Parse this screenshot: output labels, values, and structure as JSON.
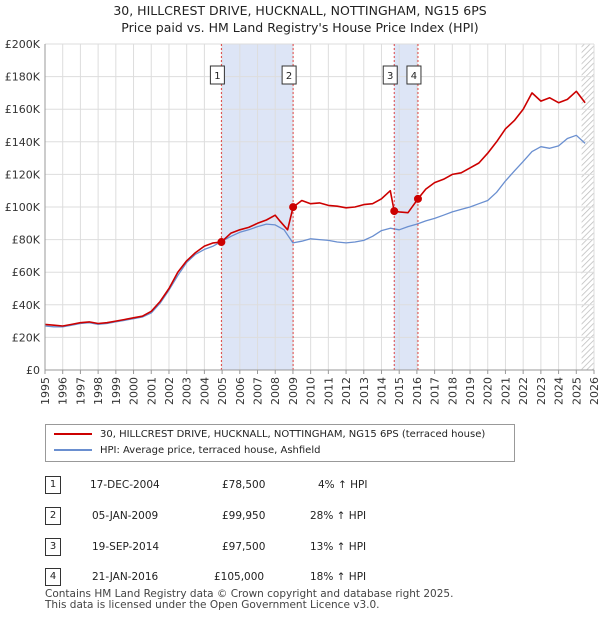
{
  "chart_data": {
    "type": "line",
    "title": "30, HILLCREST DRIVE, HUCKNALL, NOTTINGHAM, NG15 6PS",
    "subtitle": "Price paid vs. HM Land Registry's House Price Index (HPI)",
    "xlabel": "",
    "ylabel": "",
    "xlim": [
      1995,
      2026
    ],
    "ylim": [
      0,
      200000
    ],
    "x_ticks": [
      1995,
      1996,
      1997,
      1998,
      1999,
      2000,
      2001,
      2002,
      2003,
      2004,
      2005,
      2006,
      2007,
      2008,
      2009,
      2010,
      2011,
      2012,
      2013,
      2014,
      2015,
      2016,
      2017,
      2018,
      2019,
      2020,
      2021,
      2022,
      2023,
      2024,
      2025,
      2026
    ],
    "y_ticks": [
      0,
      20000,
      40000,
      60000,
      80000,
      100000,
      120000,
      140000,
      160000,
      180000,
      200000
    ],
    "y_tick_labels": [
      "£0",
      "£20K",
      "£40K",
      "£60K",
      "£80K",
      "£100K",
      "£120K",
      "£140K",
      "£160K",
      "£180K",
      "£200K"
    ],
    "grid": true,
    "shaded_spans": [
      [
        2004.96,
        2009.01
      ],
      [
        2014.72,
        2016.06
      ]
    ],
    "hatched_from": 2025.3,
    "series": [
      {
        "name": "30, HILLCREST DRIVE, HUCKNALL, NOTTINGHAM, NG15 6PS (terraced house)",
        "color": "#cc0000",
        "x": [
          1995,
          1995.5,
          1996,
          1996.5,
          1997,
          1997.5,
          1998,
          1998.5,
          1999,
          1999.5,
          2000,
          2000.5,
          2001,
          2001.5,
          2002,
          2002.5,
          2003,
          2003.5,
          2004,
          2004.5,
          2004.96,
          2005.5,
          2006,
          2006.5,
          2007,
          2007.5,
          2008,
          2008.3,
          2008.7,
          2009.01,
          2009.5,
          2010,
          2010.5,
          2011,
          2011.5,
          2012,
          2012.5,
          2013,
          2013.5,
          2014,
          2014.5,
          2014.72,
          2015,
          2015.5,
          2016.06,
          2016.5,
          2017,
          2017.5,
          2018,
          2018.5,
          2019,
          2019.5,
          2020,
          2020.5,
          2021,
          2021.5,
          2022,
          2022.5,
          2023,
          2023.5,
          2024,
          2024.5,
          2025,
          2025.5
        ],
        "values": [
          28000,
          27500,
          27000,
          28000,
          29000,
          29500,
          28500,
          29000,
          30000,
          31000,
          32000,
          33000,
          36000,
          42000,
          50000,
          60000,
          67000,
          72000,
          76000,
          78000,
          78500,
          84000,
          86000,
          87500,
          90000,
          92000,
          95000,
          91000,
          86000,
          99950,
          104000,
          102000,
          102500,
          101000,
          100500,
          99500,
          100000,
          101500,
          102000,
          105000,
          110000,
          97500,
          97000,
          96500,
          105000,
          111000,
          115000,
          117000,
          120000,
          121000,
          124000,
          127000,
          133000,
          140000,
          148000,
          153000,
          160000,
          170000,
          165000,
          167000,
          164000,
          166000,
          171000,
          164000
        ]
      },
      {
        "name": "HPI: Average price, terraced house, Ashfield",
        "color": "#6a8fd0",
        "x": [
          1995,
          1995.5,
          1996,
          1996.5,
          1997,
          1997.5,
          1998,
          1998.5,
          1999,
          1999.5,
          2000,
          2000.5,
          2001,
          2001.5,
          2002,
          2002.5,
          2003,
          2003.5,
          2004,
          2004.5,
          2005,
          2005.5,
          2006,
          2006.5,
          2007,
          2007.5,
          2008,
          2008.5,
          2009,
          2009.5,
          2010,
          2010.5,
          2011,
          2011.5,
          2012,
          2012.5,
          2013,
          2013.5,
          2014,
          2014.5,
          2015,
          2015.5,
          2016,
          2016.5,
          2017,
          2017.5,
          2018,
          2018.5,
          2019,
          2019.5,
          2020,
          2020.5,
          2021,
          2021.5,
          2022,
          2022.5,
          2023,
          2023.5,
          2024,
          2024.5,
          2025,
          2025.5
        ],
        "values": [
          27000,
          26500,
          26500,
          27500,
          28500,
          29000,
          28000,
          28500,
          29500,
          30500,
          31500,
          32500,
          35000,
          41000,
          49000,
          58000,
          66000,
          71000,
          74000,
          76000,
          79000,
          82000,
          84500,
          86000,
          88000,
          89500,
          89000,
          86000,
          78000,
          79000,
          80500,
          80000,
          79500,
          78500,
          78000,
          78500,
          79500,
          82000,
          85500,
          87000,
          86000,
          88000,
          89500,
          91500,
          93000,
          95000,
          97000,
          98500,
          100000,
          102000,
          104000,
          109000,
          116000,
          122000,
          128000,
          134000,
          137000,
          136000,
          137500,
          142000,
          144000,
          139000
        ]
      }
    ],
    "annotations": [
      {
        "label": "1",
        "x": 2004.96,
        "y": 78500
      },
      {
        "label": "2",
        "x": 2009.01,
        "y": 99950
      },
      {
        "label": "3",
        "x": 2014.72,
        "y": 97500
      },
      {
        "label": "4",
        "x": 2016.06,
        "y": 105000
      }
    ]
  },
  "legend": {
    "property_label": "30, HILLCREST DRIVE, HUCKNALL, NOTTINGHAM, NG15 6PS (terraced house)",
    "hpi_label": "HPI: Average price, terraced house, Ashfield"
  },
  "sales": [
    {
      "num": "1",
      "date": "17-DEC-2004",
      "price": "£78,500",
      "hpi": "4% ↑ HPI"
    },
    {
      "num": "2",
      "date": "05-JAN-2009",
      "price": "£99,950",
      "hpi": "28% ↑ HPI"
    },
    {
      "num": "3",
      "date": "19-SEP-2014",
      "price": "£97,500",
      "hpi": "13% ↑ HPI"
    },
    {
      "num": "4",
      "date": "21-JAN-2016",
      "price": "£105,000",
      "hpi": "18% ↑ HPI"
    }
  ],
  "footer": {
    "line1": "Contains HM Land Registry data © Crown copyright and database right 2025.",
    "line2": "This data is licensed under the Open Government Licence v3.0."
  }
}
